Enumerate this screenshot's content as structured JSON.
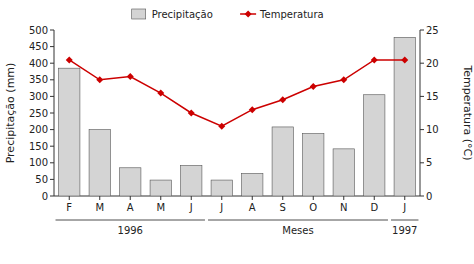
{
  "chart_data": {
    "type": "bar",
    "categories": [
      "F",
      "M",
      "A",
      "M",
      "J",
      "J",
      "A",
      "S",
      "O",
      "N",
      "D",
      "J"
    ],
    "series": [
      {
        "name": "Precipitação",
        "type": "bar",
        "color": "#d4d4d4",
        "values": [
          385,
          200,
          85,
          48,
          92,
          48,
          68,
          208,
          188,
          142,
          305,
          478
        ]
      },
      {
        "name": "Temperatura",
        "type": "line",
        "color": "#cc0000",
        "marker": "diamond",
        "axis": "y2",
        "values": [
          20.5,
          17.5,
          18.0,
          15.5,
          12.5,
          10.5,
          13.0,
          14.5,
          16.5,
          17.5,
          20.5,
          20.5
        ]
      }
    ],
    "y_label": "Precipitação (mm)",
    "y2_label": "Temperatura (°C)",
    "ylim": [
      0,
      500
    ],
    "yticks": [
      0,
      50,
      100,
      150,
      200,
      250,
      300,
      350,
      400,
      450,
      500
    ],
    "y2lim": [
      0,
      25
    ],
    "y2ticks": [
      0,
      5,
      10,
      15,
      20,
      25
    ],
    "annotations": [
      {
        "text": "1996",
        "first": 0,
        "last": 4
      },
      {
        "text": "Meses",
        "first": 5,
        "last": 10
      },
      {
        "text": "1997",
        "first": 11,
        "last": 11
      }
    ],
    "legend": "top",
    "grid": false
  }
}
